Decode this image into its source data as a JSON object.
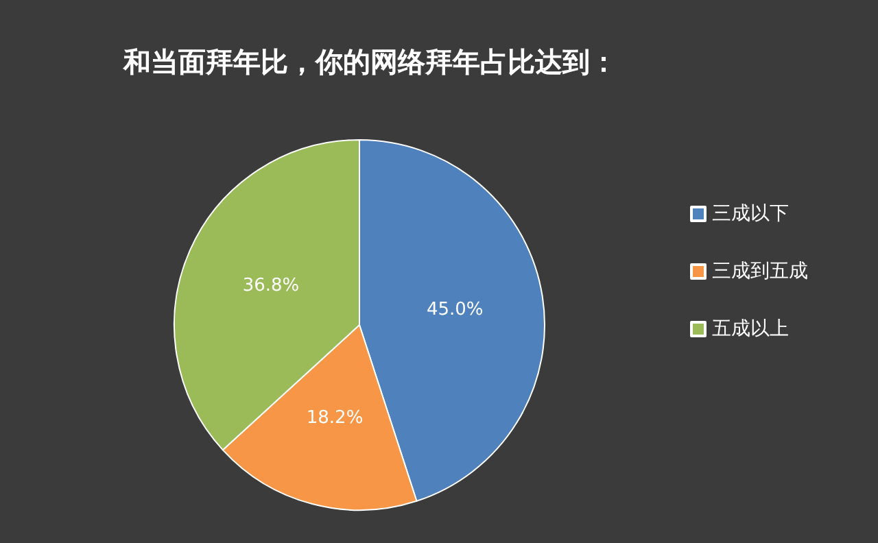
{
  "chart_data": {
    "type": "pie",
    "title": "和当面拜年比，你的网络拜年占比达到：",
    "categories": [
      "三成以下",
      "三成到五成",
      "五成以上"
    ],
    "values": [
      45.0,
      18.2,
      36.8
    ],
    "colors": [
      "#4f81bd",
      "#f79646",
      "#9bbb59"
    ],
    "value_labels": [
      "45.0%",
      "18.2%",
      "36.8%"
    ],
    "legend": "right"
  }
}
